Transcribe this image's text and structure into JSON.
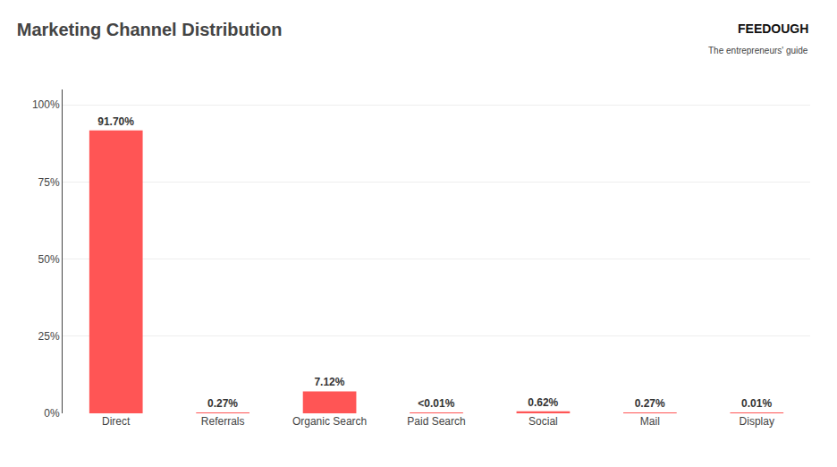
{
  "chart_data": {
    "type": "bar",
    "title": "Marketing Channel Distribution",
    "categories": [
      "Direct",
      "Referrals",
      "Organic Search",
      "Paid Search",
      "Social",
      "Mail",
      "Display"
    ],
    "values": [
      91.7,
      0.27,
      7.12,
      0.005,
      0.62,
      0.27,
      0.01
    ],
    "value_labels": [
      "91.70%",
      "0.27%",
      "7.12%",
      "<0.01%",
      "0.62%",
      "0.27%",
      "0.01%"
    ],
    "data_labels": true,
    "color": "#FF5555",
    "ylim": [
      0,
      105
    ],
    "yticks": [
      {
        "value": 0,
        "label": "0%"
      },
      {
        "value": 25,
        "label": "25%"
      },
      {
        "value": 50,
        "label": "50%"
      },
      {
        "value": 75,
        "label": "75%"
      },
      {
        "value": 100,
        "label": "100%"
      }
    ],
    "grid": true,
    "annotations": [
      "FEEDOUGH",
      "The entrepreneurs' guide"
    ]
  }
}
